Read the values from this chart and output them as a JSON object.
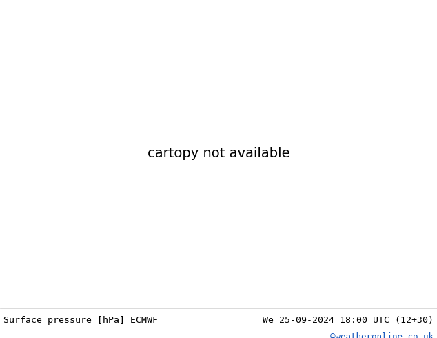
{
  "title_left": "Surface pressure [hPa] ECMWF",
  "title_right": "We 25-09-2024 18:00 UTC (12+30)",
  "copyright": "©weatheronline.co.uk",
  "bg_color": "#ffffff",
  "land_color": "#c8e89a",
  "sea_color": "#d8eef5",
  "highland_color": "#c8c8c8",
  "blue_color": "#0000cc",
  "black_color": "#000000",
  "red_color": "#dd0000",
  "grey_color": "#888888",
  "copyright_color": "#1155bb",
  "fig_width": 6.34,
  "fig_height": 4.9,
  "dpi": 100,
  "footer_fontsize": 9.5,
  "map_extent": [
    25,
    105,
    5,
    55
  ],
  "contour_lw_blue": 0.9,
  "contour_lw_black": 1.1,
  "contour_lw_red": 0.9,
  "label_fontsize": 6.5
}
